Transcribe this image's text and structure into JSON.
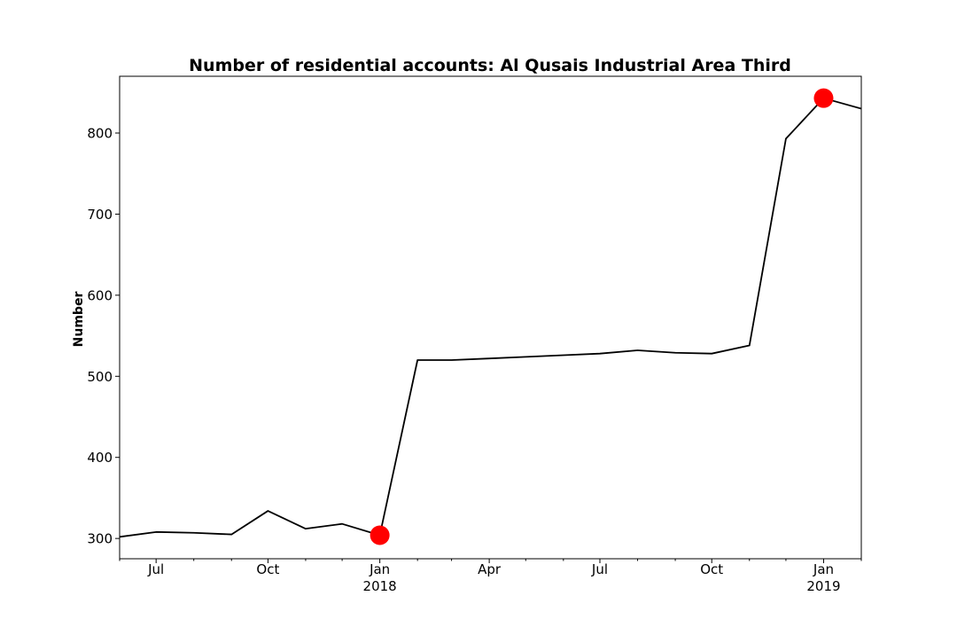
{
  "chart_data": {
    "type": "line",
    "title": "Number of residential accounts: Al Qusais Industrial Area Third",
    "xlabel": "",
    "ylabel": "Number",
    "x_axis_type": "date",
    "xlim": [
      "2017-06-01",
      "2019-02-01"
    ],
    "ylim": [
      275,
      870
    ],
    "grid": false,
    "legend": "none",
    "series": [
      {
        "color": "#000000",
        "points": [
          {
            "x": "2017-06-01",
            "y": 302
          },
          {
            "x": "2017-07-01",
            "y": 308
          },
          {
            "x": "2017-08-01",
            "y": 307
          },
          {
            "x": "2017-09-01",
            "y": 305
          },
          {
            "x": "2017-10-01",
            "y": 334
          },
          {
            "x": "2017-11-01",
            "y": 312
          },
          {
            "x": "2017-12-01",
            "y": 318
          },
          {
            "x": "2018-01-01",
            "y": 304
          },
          {
            "x": "2018-02-01",
            "y": 520
          },
          {
            "x": "2018-03-01",
            "y": 520
          },
          {
            "x": "2018-04-01",
            "y": 522
          },
          {
            "x": "2018-05-01",
            "y": 524
          },
          {
            "x": "2018-06-01",
            "y": 526
          },
          {
            "x": "2018-07-01",
            "y": 528
          },
          {
            "x": "2018-08-01",
            "y": 532
          },
          {
            "x": "2018-09-01",
            "y": 529
          },
          {
            "x": "2018-10-01",
            "y": 528
          },
          {
            "x": "2018-11-01",
            "y": 538
          },
          {
            "x": "2018-12-01",
            "y": 793
          },
          {
            "x": "2019-01-01",
            "y": 843
          },
          {
            "x": "2019-02-01",
            "y": 830
          }
        ]
      }
    ],
    "highlighted_points": [
      {
        "x": "2018-01-01",
        "y": 304,
        "color": "#ff0000"
      },
      {
        "x": "2019-01-01",
        "y": 843,
        "color": "#ff0000"
      }
    ],
    "y_ticks": [
      300,
      400,
      500,
      600,
      700,
      800
    ],
    "x_ticks": [
      {
        "x": "2017-07-01",
        "label": "Jul",
        "sublabel": ""
      },
      {
        "x": "2017-10-01",
        "label": "Oct",
        "sublabel": ""
      },
      {
        "x": "2018-01-01",
        "label": "Jan",
        "sublabel": "2018"
      },
      {
        "x": "2018-04-01",
        "label": "Apr",
        "sublabel": ""
      },
      {
        "x": "2018-07-01",
        "label": "Jul",
        "sublabel": ""
      },
      {
        "x": "2018-10-01",
        "label": "Oct",
        "sublabel": ""
      },
      {
        "x": "2019-01-01",
        "label": "Jan",
        "sublabel": "2019"
      }
    ],
    "x_minor_ticks": [
      "2017-06-01",
      "2017-08-01",
      "2017-09-01",
      "2017-11-01",
      "2017-12-01",
      "2018-02-01",
      "2018-03-01",
      "2018-05-01",
      "2018-06-01",
      "2018-08-01",
      "2018-09-01",
      "2018-11-01",
      "2018-12-01",
      "2019-02-01"
    ]
  }
}
